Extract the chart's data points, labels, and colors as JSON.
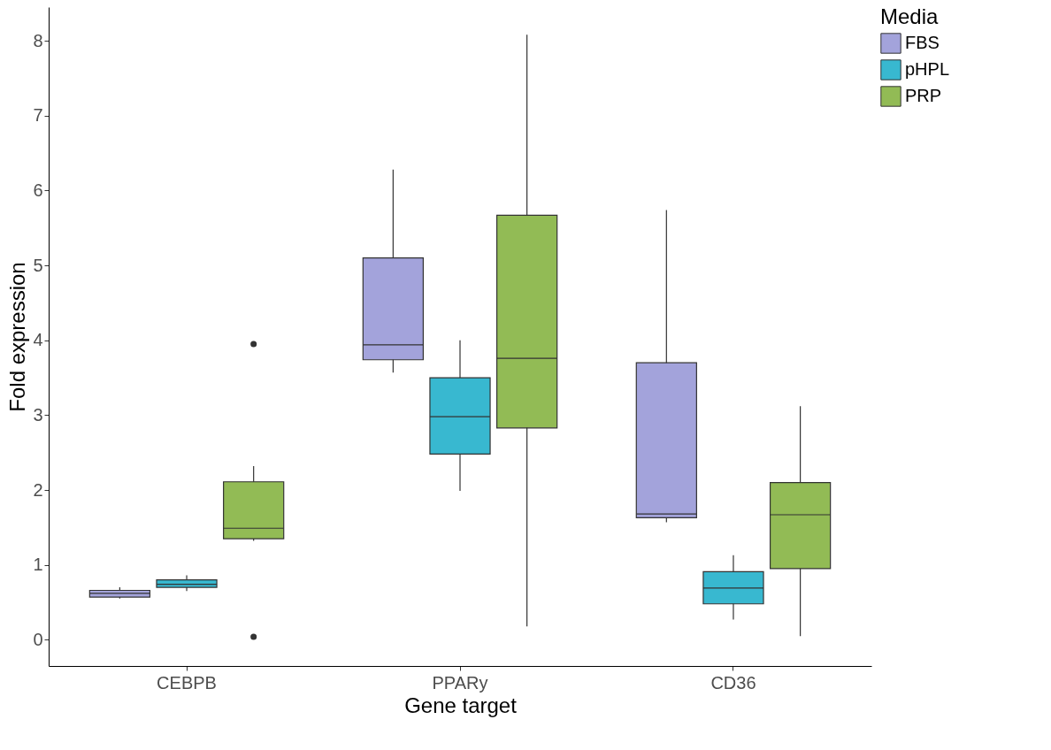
{
  "chart_data": {
    "type": "box",
    "xlabel": "Gene target",
    "ylabel": "Fold expression",
    "legend_title": "Media",
    "categories": [
      "CEBPB",
      "PPARy",
      "CD36"
    ],
    "series": [
      {
        "name": "FBS",
        "color": "#a3a3db",
        "boxes": [
          {
            "low": 0.55,
            "q1": 0.57,
            "median": 0.62,
            "q3": 0.66,
            "high": 0.7
          },
          {
            "low": 3.57,
            "q1": 3.74,
            "median": 3.94,
            "q3": 5.1,
            "high": 6.28
          },
          {
            "low": 1.57,
            "q1": 1.63,
            "median": 1.68,
            "q3": 3.7,
            "high": 5.74
          }
        ]
      },
      {
        "name": "pHPL",
        "color": "#38b8d0",
        "boxes": [
          {
            "low": 0.65,
            "q1": 0.7,
            "median": 0.74,
            "q3": 0.8,
            "high": 0.86
          },
          {
            "low": 1.99,
            "q1": 2.48,
            "median": 2.98,
            "q3": 3.5,
            "high": 4.0
          },
          {
            "low": 0.27,
            "q1": 0.48,
            "median": 0.69,
            "q3": 0.91,
            "high": 1.13
          }
        ]
      },
      {
        "name": "PRP",
        "color": "#92bb55",
        "boxes": [
          {
            "low": 1.32,
            "q1": 1.35,
            "median": 1.49,
            "q3": 2.11,
            "high": 2.32,
            "outliers": [
              3.95,
              0.04
            ]
          },
          {
            "low": 0.18,
            "q1": 2.83,
            "median": 3.76,
            "q3": 5.67,
            "high": 8.08
          },
          {
            "low": 0.05,
            "q1": 0.95,
            "median": 1.67,
            "q3": 2.1,
            "high": 3.12
          }
        ]
      }
    ],
    "ylim": [
      -0.35,
      8.45
    ],
    "yticks": [
      0,
      1,
      2,
      3,
      4,
      5,
      6,
      7,
      8
    ],
    "grid": false,
    "legend": "right"
  }
}
